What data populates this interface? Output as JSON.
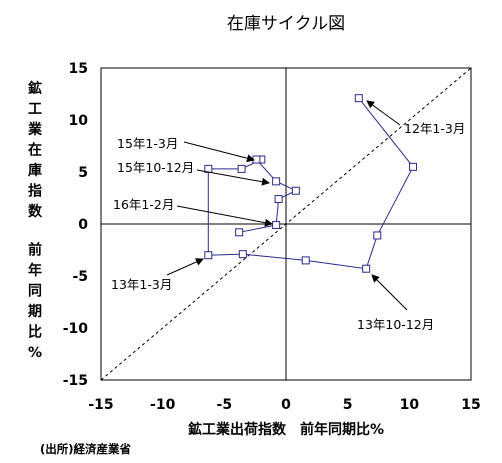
{
  "chart_data": {
    "type": "scatter",
    "title": "在庫サイクル図",
    "xlabel": "鉱工業出荷指数　前年同期比%",
    "ylabel": "鉱工業在庫指数　前年同期比%",
    "xlim": [
      -15,
      15
    ],
    "ylim": [
      -15,
      15
    ],
    "xticks": [
      "-15",
      "-10",
      "-5",
      "0",
      "5",
      "10",
      "15"
    ],
    "yticks": [
      "15",
      "10",
      "5",
      "0",
      "-5",
      "-10",
      "-15"
    ],
    "grid": false,
    "reference_line": "y = x (dashed)",
    "points": [
      {
        "x": 5.9,
        "y": 12.1
      },
      {
        "x": 10.3,
        "y": 5.5
      },
      {
        "x": 7.4,
        "y": -1.1
      },
      {
        "x": 6.5,
        "y": -4.3
      },
      {
        "x": 1.6,
        "y": -3.5
      },
      {
        "x": -3.5,
        "y": -2.9
      },
      {
        "x": -6.3,
        "y": -3.0
      },
      {
        "x": -6.3,
        "y": 5.3
      },
      {
        "x": -3.6,
        "y": 5.3
      },
      {
        "x": -2.0,
        "y": 6.2
      },
      {
        "x": -2.4,
        "y": 6.2
      },
      {
        "x": -0.8,
        "y": 4.1
      },
      {
        "x": 0.8,
        "y": 3.2
      },
      {
        "x": -0.6,
        "y": 2.4
      },
      {
        "x": -0.8,
        "y": -0.1
      },
      {
        "x": -3.8,
        "y": -0.8
      }
    ],
    "annotations": [
      {
        "text": "12年1-3月",
        "point_index": 0
      },
      {
        "text": "13年1-3月",
        "point_index": 6
      },
      {
        "text": "13年10-12月",
        "point_index": 3
      },
      {
        "text": "15年1-3月",
        "point_index": 10
      },
      {
        "text": "15年10-12月",
        "point_index": 11
      },
      {
        "text": "16年1-2月",
        "point_index": 14
      }
    ]
  },
  "source_note": "(出所)経済産業省"
}
